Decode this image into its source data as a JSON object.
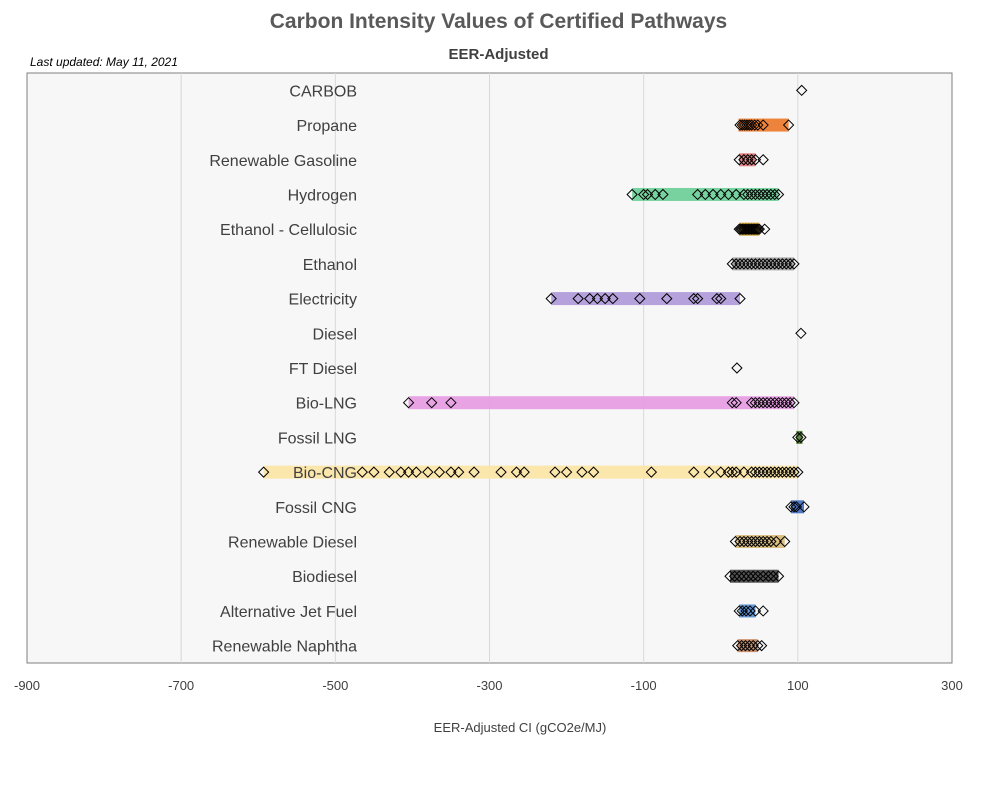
{
  "header": {
    "title": "Carbon Intensity Values of Certified Pathways",
    "subtitle": "EER-Adjusted",
    "last_updated": "Last updated: May 11, 2021"
  },
  "chart_data": {
    "type": "scatter",
    "title": "Carbon Intensity Values of Certified Pathways",
    "subtitle": "EER-Adjusted",
    "xlabel": "EER-Adjusted CI (gCO2e/MJ)",
    "xlim": [
      -900,
      300
    ],
    "xticks": [
      -900,
      -700,
      -500,
      -300,
      -100,
      100,
      300
    ],
    "grid": true,
    "categories": [
      {
        "name": "CARBOB",
        "color": "#7f7f7f",
        "bar": null,
        "points": [
          105
        ]
      },
      {
        "name": "Propane",
        "color": "#ed7d31",
        "bar": [
          23,
          88
        ],
        "points": [
          25,
          28,
          31,
          34,
          37,
          40,
          44,
          48,
          55,
          88
        ]
      },
      {
        "name": "Renewable Gasoline",
        "color": "#e07b7b",
        "bar": [
          24,
          45
        ],
        "points": [
          24,
          30,
          35,
          40,
          45,
          55
        ]
      },
      {
        "name": "Hydrogen",
        "color": "#70d09a",
        "bar": [
          -115,
          75
        ],
        "points": [
          -115,
          -100,
          -95,
          -85,
          -75,
          -30,
          -20,
          -10,
          0,
          10,
          20,
          30,
          35,
          40,
          45,
          50,
          55,
          60,
          65,
          70,
          75
        ]
      },
      {
        "name": "Ethanol - Cellulosic",
        "color": "#c59b2c",
        "bar": [
          24,
          50
        ],
        "points": [
          24,
          26,
          28,
          30,
          32,
          34,
          36,
          38,
          40,
          42,
          44,
          46,
          48,
          50,
          57
        ]
      },
      {
        "name": "Ethanol",
        "color": "#a6a6a6",
        "bar": [
          15,
          95
        ],
        "points": [
          15,
          20,
          25,
          30,
          35,
          40,
          45,
          50,
          55,
          60,
          65,
          70,
          75,
          80,
          85,
          90,
          95
        ]
      },
      {
        "name": "Electricity",
        "color": "#b19cd9",
        "bar": [
          -220,
          25
        ],
        "points": [
          -220,
          -185,
          -170,
          -160,
          -150,
          -140,
          -105,
          -70,
          -35,
          -30,
          -5,
          0,
          25
        ]
      },
      {
        "name": "Diesel",
        "color": "#7f7f7f",
        "bar": null,
        "points": [
          104
        ]
      },
      {
        "name": "FT Diesel",
        "color": "#7f7f7f",
        "bar": null,
        "points": [
          21
        ]
      },
      {
        "name": "Bio-LNG",
        "color": "#e79ee4",
        "bar": [
          -405,
          95
        ],
        "points": [
          -405,
          -375,
          -350,
          15,
          20,
          40,
          45,
          50,
          55,
          60,
          65,
          70,
          75,
          80,
          85,
          90,
          95
        ]
      },
      {
        "name": "Fossil LNG",
        "color": "#548235",
        "bar": [
          98,
          106
        ],
        "points": [
          100,
          104
        ]
      },
      {
        "name": "Bio-CNG",
        "color": "#fbe5a6",
        "bar": [
          -593,
          100
        ],
        "points": [
          -593,
          -465,
          -450,
          -430,
          -415,
          -405,
          -395,
          -380,
          -365,
          -350,
          -340,
          -320,
          -285,
          -265,
          -255,
          -215,
          -200,
          -180,
          -165,
          -90,
          -35,
          -15,
          0,
          10,
          15,
          20,
          30,
          40,
          45,
          50,
          55,
          60,
          65,
          70,
          75,
          80,
          85,
          90,
          95,
          100
        ]
      },
      {
        "name": "Fossil CNG",
        "color": "#4472c4",
        "bar": [
          91,
          108
        ],
        "points": [
          91,
          95,
          98,
          108
        ]
      },
      {
        "name": "Renewable Diesel",
        "color": "#d9bc7b",
        "bar": [
          19,
          83
        ],
        "points": [
          19,
          25,
          30,
          35,
          40,
          45,
          50,
          55,
          60,
          65,
          72,
          83
        ]
      },
      {
        "name": "Biodiesel",
        "color": "#4a4a4a",
        "bar": [
          12,
          75
        ],
        "points": [
          12,
          18,
          24,
          30,
          36,
          42,
          48,
          55,
          62,
          68,
          75
        ]
      },
      {
        "name": "Alternative Jet Fuel",
        "color": "#5b8fd1",
        "bar": [
          24,
          45
        ],
        "points": [
          24,
          28,
          33,
          38,
          45,
          55
        ]
      },
      {
        "name": "Renewable Naphtha",
        "color": "#c98a64",
        "bar": [
          22,
          48
        ],
        "points": [
          22,
          27,
          32,
          37,
          42,
          48,
          53
        ]
      }
    ]
  }
}
